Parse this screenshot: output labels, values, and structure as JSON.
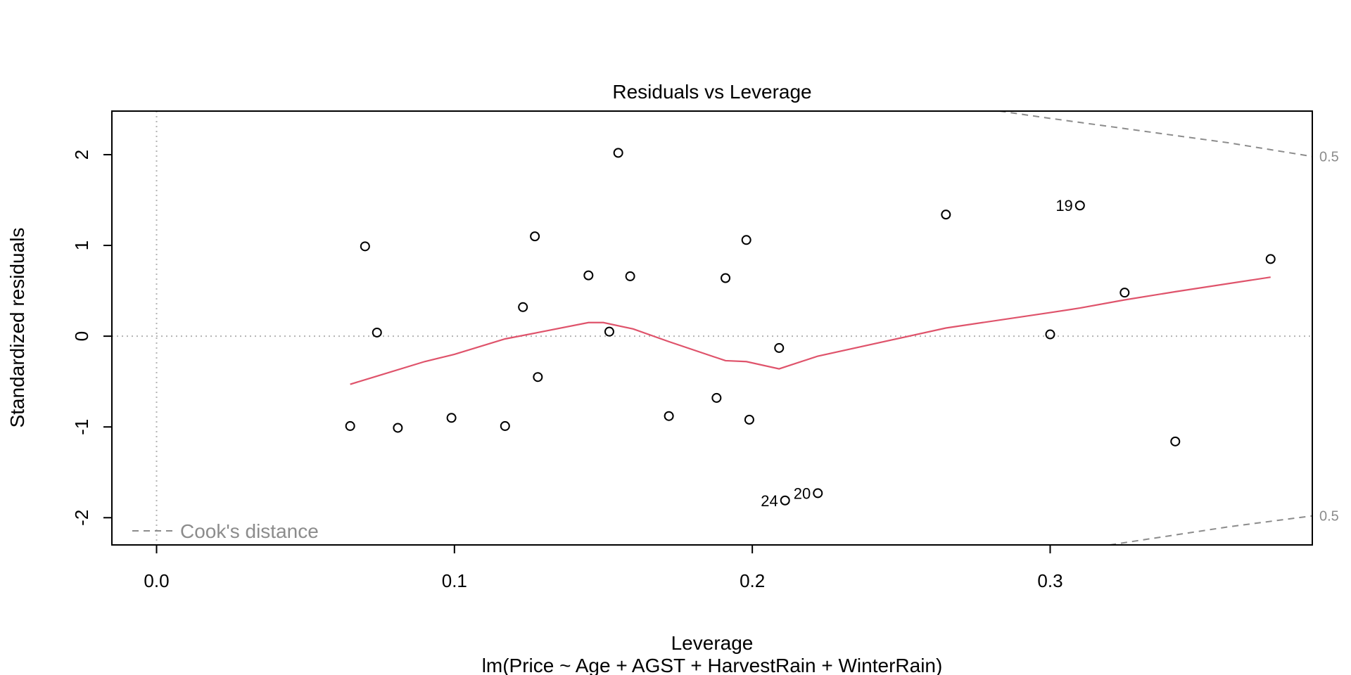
{
  "chart_data": {
    "type": "scatter",
    "title": "Residuals vs Leverage",
    "xlabel": "Leverage",
    "subtitle": "lm(Price ~ Age + AGST + HarvestRain + WinterRain)",
    "ylabel": "Standardized residuals",
    "xlim": [
      -0.015,
      0.388
    ],
    "ylim": [
      -2.3,
      2.48
    ],
    "x_ticks": [
      0.0,
      0.1,
      0.2,
      0.3
    ],
    "x_tick_labels": [
      "0.0",
      "0.1",
      "0.2",
      "0.3"
    ],
    "y_ticks": [
      2,
      1,
      0,
      -1,
      -2
    ],
    "y_tick_labels": [
      "2",
      "1",
      "0",
      "-1",
      "-2"
    ],
    "reference_lines": {
      "x": 0,
      "y": 0,
      "style": "dotted",
      "color": "#b3b3b3"
    },
    "points": [
      {
        "x": 0.065,
        "y": -0.99,
        "label": ""
      },
      {
        "x": 0.07,
        "y": 0.99,
        "label": ""
      },
      {
        "x": 0.074,
        "y": 0.04,
        "label": ""
      },
      {
        "x": 0.081,
        "y": -1.01,
        "label": ""
      },
      {
        "x": 0.099,
        "y": -0.9,
        "label": ""
      },
      {
        "x": 0.117,
        "y": -0.99,
        "label": ""
      },
      {
        "x": 0.123,
        "y": 0.32,
        "label": ""
      },
      {
        "x": 0.127,
        "y": 1.1,
        "label": ""
      },
      {
        "x": 0.128,
        "y": -0.45,
        "label": ""
      },
      {
        "x": 0.145,
        "y": 0.67,
        "label": ""
      },
      {
        "x": 0.152,
        "y": 0.05,
        "label": ""
      },
      {
        "x": 0.155,
        "y": 2.02,
        "label": ""
      },
      {
        "x": 0.159,
        "y": 0.66,
        "label": ""
      },
      {
        "x": 0.172,
        "y": -0.88,
        "label": ""
      },
      {
        "x": 0.188,
        "y": -0.68,
        "label": ""
      },
      {
        "x": 0.191,
        "y": 0.64,
        "label": ""
      },
      {
        "x": 0.198,
        "y": 1.06,
        "label": ""
      },
      {
        "x": 0.199,
        "y": -0.92,
        "label": ""
      },
      {
        "x": 0.209,
        "y": -0.13,
        "label": ""
      },
      {
        "x": 0.211,
        "y": -1.81,
        "label": "24"
      },
      {
        "x": 0.222,
        "y": -1.73,
        "label": "20"
      },
      {
        "x": 0.265,
        "y": 1.34,
        "label": ""
      },
      {
        "x": 0.3,
        "y": 0.02,
        "label": ""
      },
      {
        "x": 0.31,
        "y": 1.44,
        "label": "19"
      },
      {
        "x": 0.325,
        "y": 0.48,
        "label": ""
      },
      {
        "x": 0.342,
        "y": -1.16,
        "label": ""
      },
      {
        "x": 0.374,
        "y": 0.85,
        "label": ""
      }
    ],
    "smooth_line": {
      "color": "#df536b",
      "x": [
        0.065,
        0.074,
        0.09,
        0.1,
        0.117,
        0.128,
        0.145,
        0.15,
        0.16,
        0.172,
        0.191,
        0.198,
        0.209,
        0.222,
        0.265,
        0.3,
        0.31,
        0.325,
        0.342,
        0.374
      ],
      "y": [
        -0.53,
        -0.44,
        -0.28,
        -0.2,
        -0.03,
        0.04,
        0.15,
        0.15,
        0.08,
        -0.06,
        -0.27,
        -0.28,
        -0.36,
        -0.22,
        0.09,
        0.26,
        0.31,
        0.4,
        0.49,
        0.65
      ]
    },
    "cooks_distance": {
      "legend": "Cook's distance",
      "color": "#8c8c8c",
      "contours": [
        {
          "level_label": "0.5",
          "sign": 1,
          "x": [
            0.283,
            0.3,
            0.32,
            0.34,
            0.36,
            0.388
          ],
          "y": [
            2.48,
            2.4,
            2.31,
            2.22,
            2.13,
            1.98
          ]
        },
        {
          "level_label": "0.5",
          "sign": -1,
          "x": [
            0.32,
            0.34,
            0.36,
            0.388
          ],
          "y": [
            -2.3,
            -2.2,
            -2.1,
            -1.98
          ]
        }
      ]
    },
    "point_style": {
      "shape": "open-circle",
      "color": "#000000"
    }
  }
}
